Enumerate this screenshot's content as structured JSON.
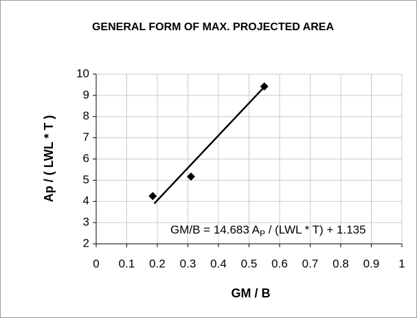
{
  "chart_data": {
    "type": "scatter",
    "title": "GENERAL FORM OF MAX. PROJECTED AREA",
    "x_label": "GM / B",
    "y_label": "Ap / ( LWL * T )",
    "annotation": [
      "GM/B = 14.683 A",
      "P",
      " / (LWL * T) + 1.135"
    ],
    "series": [
      {
        "x": [
          0.185,
          0.31,
          0.55
        ],
        "values": [
          4.25,
          5.17,
          9.42
        ],
        "color": "#000000"
      }
    ],
    "trendline": {
      "x": [
        0.19,
        0.55
      ],
      "values": [
        3.9,
        9.4
      ],
      "color": "#000000"
    },
    "xlim": [
      0,
      1
    ],
    "xticks": [
      0,
      0.1,
      0.2,
      0.3,
      0.4,
      0.5,
      0.6,
      0.7,
      0.8,
      0.9,
      1
    ],
    "ylim": [
      2,
      10
    ],
    "yticks": [
      2,
      3,
      4,
      5,
      6,
      7,
      8,
      9,
      10
    ],
    "grid": true
  }
}
